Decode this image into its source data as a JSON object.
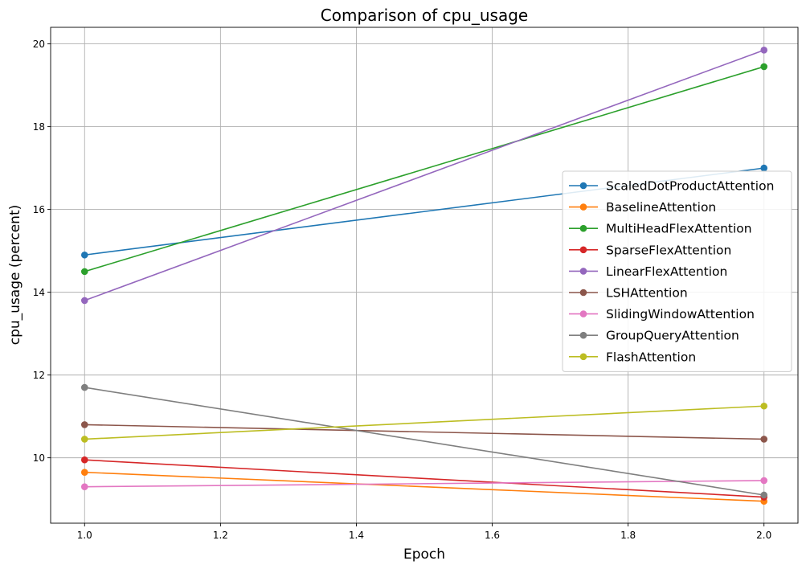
{
  "chart_data": {
    "type": "line",
    "title": "Comparison of cpu_usage",
    "xlabel": "Epoch",
    "ylabel": "cpu_usage (percent)",
    "x": [
      1.0,
      2.0
    ],
    "xlim": [
      0.95,
      2.05
    ],
    "ylim": [
      8.42,
      20.4
    ],
    "xticks": [
      "1.0",
      "1.2",
      "1.4",
      "1.6",
      "1.8",
      "2.0"
    ],
    "yticks": [
      "10",
      "12",
      "14",
      "16",
      "18",
      "20"
    ],
    "grid": true,
    "legend_position": "center-right",
    "series": [
      {
        "name": "ScaledDotProductAttention",
        "color": "#1f77b4",
        "values": [
          14.9,
          17.0
        ]
      },
      {
        "name": "BaselineAttention",
        "color": "#ff7f0e",
        "values": [
          9.65,
          8.95
        ]
      },
      {
        "name": "MultiHeadFlexAttention",
        "color": "#2ca02c",
        "values": [
          14.5,
          19.45
        ]
      },
      {
        "name": "SparseFlexAttention",
        "color": "#d62728",
        "values": [
          9.95,
          9.05
        ]
      },
      {
        "name": "LinearFlexAttention",
        "color": "#9467bd",
        "values": [
          13.8,
          19.85
        ]
      },
      {
        "name": "LSHAttention",
        "color": "#8c564b",
        "values": [
          10.8,
          10.45
        ]
      },
      {
        "name": "SlidingWindowAttention",
        "color": "#e377c2",
        "values": [
          9.3,
          9.45
        ]
      },
      {
        "name": "GroupQueryAttention",
        "color": "#7f7f7f",
        "values": [
          11.7,
          9.1
        ]
      },
      {
        "name": "FlashAttention",
        "color": "#bcbd22",
        "values": [
          10.45,
          11.25
        ]
      }
    ]
  }
}
